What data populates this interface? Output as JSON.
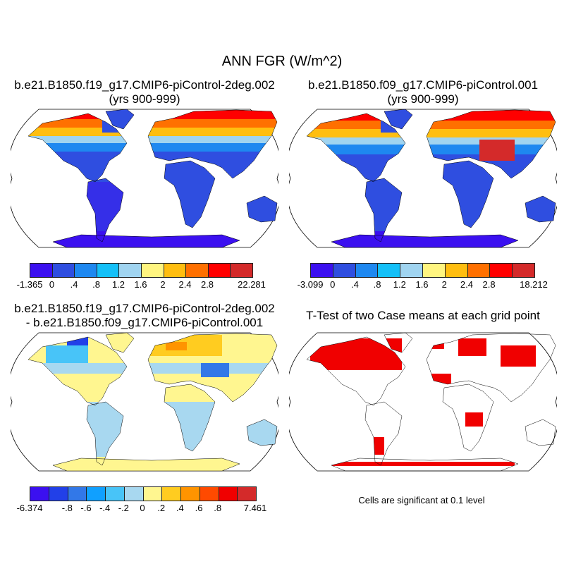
{
  "title": "ANN FGR (W/m^2)",
  "panels": [
    {
      "line1": "b.e21.B1850.f19_g17.CMIP6-piControl-2deg.002",
      "line2": "(yrs 900-999)"
    },
    {
      "line1": "b.e21.B1850.f09_g17.CMIP6-piControl.001",
      "line2": "(yrs 900-999)"
    },
    {
      "line1": "b.e21.B1850.f19_g17.CMIP6-piControl-2deg.002",
      "line2": "- b.e21.B1850.f09_g17.CMIP6-piControl.001"
    },
    {
      "line1": "T-Test of two Case means at each grid point"
    }
  ],
  "colorbars": [
    {
      "colors": [
        "#3b10f0",
        "#2f4ee0",
        "#1e88f0",
        "#14c0f8",
        "#a0d4f0",
        "#fff580",
        "#ffbe10",
        "#ff7000",
        "#ff0000",
        "#d42a2a"
      ],
      "labels": [
        "-1.365",
        "0",
        ".4",
        ".8",
        "1.2",
        "1.6",
        "2",
        "2.4",
        "2.8",
        "",
        "22.281"
      ]
    },
    {
      "colors": [
        "#3b10f0",
        "#2f4ee0",
        "#1e88f0",
        "#14c0f8",
        "#a0d4f0",
        "#fff580",
        "#ffbe10",
        "#ff7000",
        "#ff0000",
        "#d42a2a"
      ],
      "labels": [
        "-3.099",
        "0",
        ".4",
        ".8",
        "1.2",
        "1.6",
        "2",
        "2.4",
        "2.8",
        "",
        "18.212"
      ]
    },
    {
      "colors": [
        "#3b10f0",
        "#2240e8",
        "#3278e8",
        "#10a0ff",
        "#48c4f8",
        "#a8d8f0",
        "#fff690",
        "#ffcc20",
        "#ff9400",
        "#ff4a00",
        "#f00000",
        "#d42a2a"
      ],
      "labels": [
        "-6.374",
        "",
        "-.8",
        "-.6",
        "-.4",
        "-.2",
        "0",
        ".2",
        ".4",
        ".6",
        ".8",
        "",
        "7.461"
      ]
    }
  ],
  "note": "Cells are significant at 0.1 level"
}
